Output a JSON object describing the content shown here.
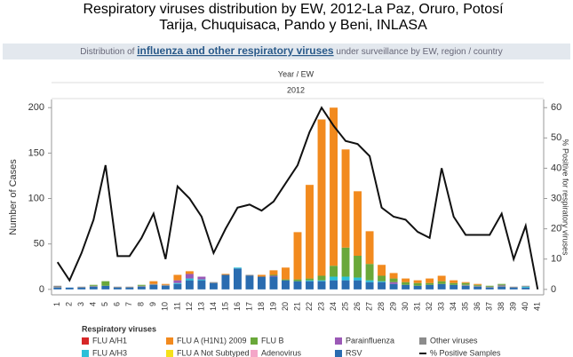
{
  "chart_data": {
    "type": "bar",
    "title": [
      "Respiratory viruses distribution by EW, 2012-La Paz, Oruro, Potosí",
      "Tarija, Chuquisaca, Pando y Beni, INLASA"
    ],
    "subtitle": [
      "Distribution of ",
      "influenza and other respiratory viruses",
      " under surveillance by EW, region / country"
    ],
    "column_header": "Year / EW",
    "year": "2012",
    "y_label": "Number of Cases",
    "y2_label": "% Positive for respiratory viruses",
    "legend_title": "Respiratory viruses",
    "categories": [
      "1",
      "2",
      "3",
      "4",
      "5",
      "6",
      "7",
      "8",
      "9",
      "10",
      "11",
      "12",
      "13",
      "14",
      "15",
      "16",
      "17",
      "18",
      "19",
      "20",
      "21",
      "22",
      "23",
      "24",
      "25",
      "26",
      "27",
      "28",
      "29",
      "30",
      "31",
      "32",
      "33",
      "34",
      "35",
      "36",
      "37",
      "38",
      "39",
      "40",
      "41"
    ],
    "ylim": [
      -6,
      209
    ],
    "yticks": [
      0,
      50,
      100,
      150,
      200
    ],
    "y2lim": [
      -1.8,
      62.7
    ],
    "y2ticks": [
      0,
      10,
      20,
      30,
      40,
      50,
      60
    ],
    "series": [
      {
        "name": "FLU A/H1",
        "color": "#d62728",
        "values": [
          0,
          0,
          0,
          0,
          0,
          0,
          0,
          0,
          0,
          0,
          0,
          0,
          0,
          0,
          0,
          0,
          0,
          0,
          0,
          0,
          0,
          0,
          0,
          0,
          0,
          0,
          0,
          0,
          0,
          0,
          0,
          0,
          0,
          0,
          0,
          0,
          0,
          0,
          0,
          0,
          0
        ]
      },
      {
        "name": "FLU A (H1N1) 2009",
        "color": "#f28a1e",
        "values": [
          0,
          0,
          0,
          0,
          0,
          0,
          0,
          0,
          3,
          1,
          6,
          3,
          0,
          0,
          1,
          0,
          0,
          2,
          5,
          13,
          52,
          103,
          172,
          174,
          108,
          71,
          36,
          12,
          6,
          4,
          3,
          5,
          6,
          3,
          1,
          1,
          0,
          0,
          0,
          0,
          0
        ]
      },
      {
        "name": "FLU B",
        "color": "#6aa83a",
        "values": [
          0,
          0,
          0,
          1,
          5,
          0,
          0,
          1,
          0,
          0,
          0,
          0,
          0,
          0,
          0,
          0,
          0,
          0,
          1,
          1,
          2,
          2,
          5,
          12,
          32,
          24,
          18,
          6,
          4,
          3,
          3,
          2,
          3,
          2,
          2,
          1,
          1,
          1,
          0,
          0,
          0
        ]
      },
      {
        "name": "Parainfluenza",
        "color": "#9b59b6",
        "values": [
          0,
          0,
          0,
          0,
          0,
          0,
          0,
          0,
          0,
          0,
          3,
          5,
          3,
          0,
          0,
          0,
          0,
          0,
          1,
          0,
          0,
          0,
          0,
          0,
          0,
          0,
          0,
          0,
          2,
          0,
          0,
          0,
          0,
          0,
          0,
          0,
          0,
          0,
          0,
          0,
          0
        ]
      },
      {
        "name": "Other viruses",
        "color": "#8c8c8c",
        "values": [
          2,
          0,
          1,
          1,
          0,
          1,
          1,
          1,
          1,
          1,
          0,
          0,
          0,
          1,
          0,
          0,
          1,
          0,
          0,
          0,
          0,
          0,
          0,
          0,
          0,
          0,
          0,
          0,
          0,
          0,
          0,
          0,
          0,
          0,
          1,
          1,
          1,
          2,
          1,
          1,
          0
        ]
      },
      {
        "name": "FLU A/H3",
        "color": "#2bc0d8",
        "values": [
          0,
          0,
          0,
          0,
          0,
          0,
          0,
          0,
          0,
          0,
          1,
          2,
          1,
          0,
          0,
          1,
          0,
          0,
          0,
          0,
          0,
          1,
          1,
          4,
          4,
          3,
          2,
          1,
          0,
          0,
          0,
          0,
          0,
          0,
          0,
          0,
          0,
          0,
          0,
          1,
          0
        ]
      },
      {
        "name": "FLU A Not Subtyped",
        "color": "#f5e11b",
        "values": [
          0,
          0,
          0,
          0,
          0,
          0,
          0,
          0,
          0,
          0,
          0,
          0,
          0,
          0,
          0,
          0,
          0,
          0,
          0,
          0,
          0,
          0,
          0,
          0,
          0,
          0,
          0,
          0,
          0,
          0,
          0,
          0,
          0,
          0,
          0,
          0,
          0,
          0,
          0,
          0,
          0
        ]
      },
      {
        "name": "Adenovirus",
        "color": "#f4a6c8",
        "values": [
          0,
          0,
          0,
          0,
          0,
          0,
          0,
          0,
          0,
          0,
          0,
          0,
          0,
          0,
          0,
          0,
          0,
          0,
          0,
          0,
          0,
          0,
          0,
          0,
          0,
          0,
          0,
          0,
          0,
          0,
          0,
          0,
          0,
          0,
          0,
          0,
          0,
          0,
          0,
          0,
          0
        ]
      },
      {
        "name": "RSV",
        "color": "#2a6cb0",
        "values": [
          2,
          2,
          2,
          3,
          4,
          2,
          2,
          3,
          5,
          4,
          6,
          10,
          10,
          7,
          16,
          23,
          15,
          14,
          14,
          10,
          9,
          9,
          9,
          10,
          10,
          10,
          8,
          8,
          6,
          5,
          4,
          5,
          6,
          5,
          4,
          3,
          2,
          3,
          2,
          2,
          0
        ]
      },
      {
        "name": "% Positive Samples",
        "color": "#111111",
        "type": "line",
        "axis": "y2",
        "values": [
          9,
          3,
          12,
          23,
          41,
          11,
          11,
          17,
          25,
          10,
          34,
          30,
          24,
          12,
          20,
          27,
          28,
          26,
          29,
          35,
          41,
          52,
          60,
          54,
          49,
          48,
          44,
          27,
          24,
          23,
          19,
          17,
          40,
          24,
          18,
          18,
          18,
          25,
          10,
          21,
          0
        ]
      }
    ]
  }
}
